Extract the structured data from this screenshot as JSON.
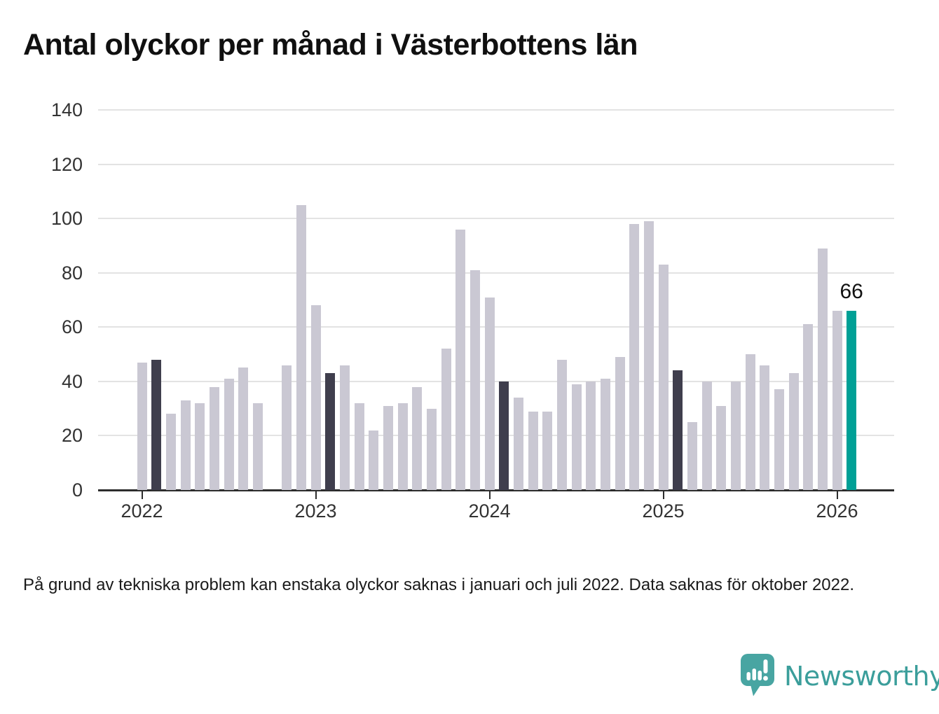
{
  "title": "Antal olyckor per månad i Västerbottens län",
  "footnote": "På grund av tekniska problem kan enstaka olyckor saknas i januari och juli 2022. Data saknas för oktober 2022.",
  "branding": {
    "name": "Newsworthy"
  },
  "colors": {
    "bar_default": "#cac8d3",
    "bar_dark": "#3f3e4d",
    "bar_latest": "#00a096",
    "gridline": "#e3e3e3",
    "axis": "#2d2d2d",
    "tick_label": "#333333",
    "annotation_text": "#111111",
    "logo_teal": "#48a5a2",
    "logo_text_teal": "#3b9e9b"
  },
  "chart_data": {
    "type": "bar",
    "title": "Antal olyckor per månad i Västerbottens län",
    "xlabel": "",
    "ylabel": "",
    "ylim": [
      0,
      140
    ],
    "yticks": [
      0,
      20,
      40,
      60,
      80,
      100,
      120,
      140
    ],
    "xticks": [
      "2022",
      "2023",
      "2024",
      "2025",
      "2026"
    ],
    "grid": "horizontal",
    "legend": "none",
    "missing_months": [
      "2022-10"
    ],
    "annotation": {
      "month": "2026-02",
      "text": "66"
    },
    "series": [
      {
        "month": "2022-01",
        "value": 47,
        "emphasis": "default"
      },
      {
        "month": "2022-02",
        "value": 48,
        "emphasis": "dark"
      },
      {
        "month": "2022-03",
        "value": 28,
        "emphasis": "default"
      },
      {
        "month": "2022-04",
        "value": 33,
        "emphasis": "default"
      },
      {
        "month": "2022-05",
        "value": 32,
        "emphasis": "default"
      },
      {
        "month": "2022-06",
        "value": 38,
        "emphasis": "default"
      },
      {
        "month": "2022-07",
        "value": 41,
        "emphasis": "default"
      },
      {
        "month": "2022-08",
        "value": 45,
        "emphasis": "default"
      },
      {
        "month": "2022-09",
        "value": 32,
        "emphasis": "default"
      },
      {
        "month": "2022-10",
        "value": null,
        "emphasis": "default"
      },
      {
        "month": "2022-11",
        "value": 46,
        "emphasis": "default"
      },
      {
        "month": "2022-12",
        "value": 105,
        "emphasis": "default"
      },
      {
        "month": "2023-01",
        "value": 68,
        "emphasis": "default"
      },
      {
        "month": "2023-02",
        "value": 43,
        "emphasis": "dark"
      },
      {
        "month": "2023-03",
        "value": 46,
        "emphasis": "default"
      },
      {
        "month": "2023-04",
        "value": 32,
        "emphasis": "default"
      },
      {
        "month": "2023-05",
        "value": 22,
        "emphasis": "default"
      },
      {
        "month": "2023-06",
        "value": 31,
        "emphasis": "default"
      },
      {
        "month": "2023-07",
        "value": 32,
        "emphasis": "default"
      },
      {
        "month": "2023-08",
        "value": 38,
        "emphasis": "default"
      },
      {
        "month": "2023-09",
        "value": 30,
        "emphasis": "default"
      },
      {
        "month": "2023-10",
        "value": 52,
        "emphasis": "default"
      },
      {
        "month": "2023-11",
        "value": 96,
        "emphasis": "default"
      },
      {
        "month": "2023-12",
        "value": 81,
        "emphasis": "default"
      },
      {
        "month": "2024-01",
        "value": 71,
        "emphasis": "default"
      },
      {
        "month": "2024-02",
        "value": 40,
        "emphasis": "dark"
      },
      {
        "month": "2024-03",
        "value": 34,
        "emphasis": "default"
      },
      {
        "month": "2024-04",
        "value": 29,
        "emphasis": "default"
      },
      {
        "month": "2024-05",
        "value": 29,
        "emphasis": "default"
      },
      {
        "month": "2024-06",
        "value": 48,
        "emphasis": "default"
      },
      {
        "month": "2024-07",
        "value": 39,
        "emphasis": "default"
      },
      {
        "month": "2024-08",
        "value": 40,
        "emphasis": "default"
      },
      {
        "month": "2024-09",
        "value": 41,
        "emphasis": "default"
      },
      {
        "month": "2024-10",
        "value": 49,
        "emphasis": "default"
      },
      {
        "month": "2024-11",
        "value": 98,
        "emphasis": "default"
      },
      {
        "month": "2024-12",
        "value": 99,
        "emphasis": "default"
      },
      {
        "month": "2025-01",
        "value": 83,
        "emphasis": "default"
      },
      {
        "month": "2025-02",
        "value": 44,
        "emphasis": "dark"
      },
      {
        "month": "2025-03",
        "value": 25,
        "emphasis": "default"
      },
      {
        "month": "2025-04",
        "value": 40,
        "emphasis": "default"
      },
      {
        "month": "2025-05",
        "value": 31,
        "emphasis": "default"
      },
      {
        "month": "2025-06",
        "value": 40,
        "emphasis": "default"
      },
      {
        "month": "2025-07",
        "value": 50,
        "emphasis": "default"
      },
      {
        "month": "2025-08",
        "value": 46,
        "emphasis": "default"
      },
      {
        "month": "2025-09",
        "value": 37,
        "emphasis": "default"
      },
      {
        "month": "2025-10",
        "value": 43,
        "emphasis": "default"
      },
      {
        "month": "2025-11",
        "value": 61,
        "emphasis": "default"
      },
      {
        "month": "2025-12",
        "value": 89,
        "emphasis": "default"
      },
      {
        "month": "2026-01",
        "value": 66,
        "emphasis": "default"
      },
      {
        "month": "2026-02",
        "value": 66,
        "emphasis": "latest"
      }
    ]
  }
}
